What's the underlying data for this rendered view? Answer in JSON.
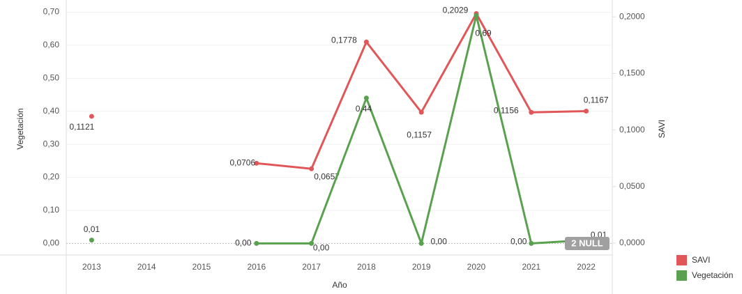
{
  "chart_data": {
    "type": "line",
    "x_label": "Año",
    "y_label": "Vegetación",
    "y2_label": "SAVI",
    "categories": [
      "2013",
      "2014",
      "2015",
      "2016",
      "2017",
      "2018",
      "2019",
      "2020",
      "2021",
      "2022"
    ],
    "series": [
      {
        "name": "SAVI",
        "color": "#e15759",
        "axis": "y2",
        "values": [
          0.1121,
          null,
          null,
          0.0706,
          0.0657,
          0.1778,
          0.1157,
          0.2029,
          0.1156,
          0.1167
        ],
        "value_labels": [
          "0,1121",
          null,
          null,
          "0,0706",
          "0,0657",
          "0,1778",
          "0,1157",
          "0,2029",
          "0,1156",
          "0,1167"
        ]
      },
      {
        "name": "Vegetación",
        "color": "#59a14f",
        "values": [
          0.01,
          null,
          null,
          0.0,
          0.0,
          0.44,
          0.0,
          0.69,
          0.0,
          0.01
        ],
        "value_labels": [
          "0,01",
          null,
          null,
          "0,00",
          "0,00",
          "0,44",
          "0,00",
          "0,69",
          "0,00",
          "0,01"
        ]
      }
    ],
    "ylim": [
      -0.035,
      0.72
    ],
    "yticks": [
      {
        "value": 0,
        "label": "0,00"
      },
      {
        "value": 0.1,
        "label": "0,10"
      },
      {
        "value": 0.2,
        "label": "0,20"
      },
      {
        "value": 0.3,
        "label": "0,30"
      },
      {
        "value": 0.4,
        "label": "0,40"
      },
      {
        "value": 0.5,
        "label": "0,50"
      },
      {
        "value": 0.6,
        "label": "0,60"
      },
      {
        "value": 0.7,
        "label": "0,70"
      }
    ],
    "y2lim": [
      -0.0105,
      0.21
    ],
    "y2ticks": [
      {
        "value": 0,
        "label": "0,0000"
      },
      {
        "value": 0.05,
        "label": "0,0500"
      },
      {
        "value": 0.1,
        "label": "0,1000"
      },
      {
        "value": 0.15,
        "label": "0,1500"
      },
      {
        "value": 0.2,
        "label": "0,2000"
      }
    ],
    "grid": true,
    "legend": "bottom-right",
    "annotation": "2 NULL"
  }
}
